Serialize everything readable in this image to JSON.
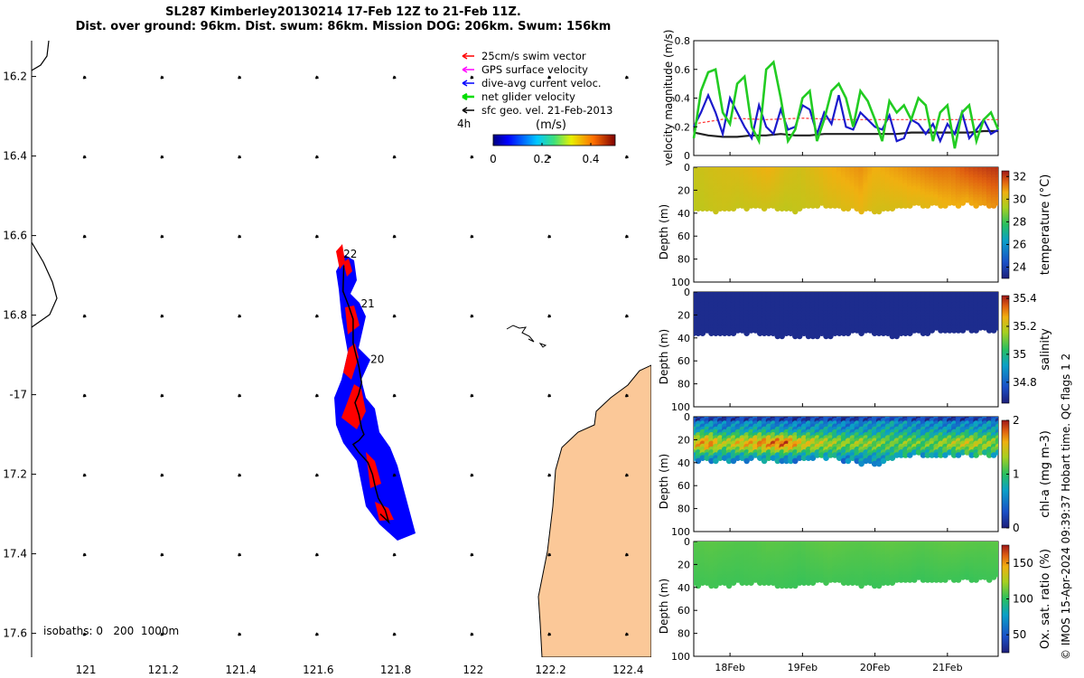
{
  "title": {
    "line1": "SL287 Kimberley20130214 17-Feb 12Z to 21-Feb 11Z.",
    "line2": "Dist. over ground: 96km. Dist. swum: 86km. Mission DOG: 206km. Swum: 156km"
  },
  "colors": {
    "swim_vector": "#ff0000",
    "gps_velocity": "#ff00ff",
    "dive_avg": "#0000ff",
    "net_glider": "#00dd00",
    "sfc_geo": "#000000",
    "land": "#fbc898",
    "track_red": "#ff0000",
    "track_blue": "#0000ff"
  },
  "copyright": "© IMOS 15-Apr-2024 09:39:37 Hobart time. QC flags 1  2",
  "chart_data": [
    {
      "type": "scatter",
      "id": "map",
      "xlim": [
        120.86,
        122.46
      ],
      "ylim": [
        -17.66,
        -16.11
      ],
      "xticks": [
        121,
        121.2,
        121.4,
        121.6,
        121.8,
        122,
        122.2,
        122.4
      ],
      "xtick_labels": [
        "121",
        "121.2",
        "121.4",
        "121.6",
        "121.8",
        "122",
        "122.2",
        "122.4"
      ],
      "yticks": [
        -16.2,
        -16.4,
        -16.6,
        -16.8,
        -17,
        -17.2,
        -17.4,
        -17.6
      ],
      "ytick_labels": [
        "16.2",
        "16.4",
        "16.6",
        "16.8",
        "-17",
        "17.2",
        "17.4",
        "17.6"
      ],
      "legend": {
        "placement": "top-right",
        "entries": [
          "25cm/s swim vector",
          "GPS surface velocity",
          "dive-avg current veloc.",
          "net glider velocity",
          "sfc geo. vel. 21-Feb-2013"
        ]
      },
      "time_step_label": "4h",
      "colorbar": {
        "label": "(m/s)",
        "range": [
          0,
          0.5
        ],
        "ticks": [
          0,
          0.2,
          0.4
        ],
        "tick_labels": [
          "0",
          "0.2",
          "0.4"
        ]
      },
      "isobath_label": "isobaths: 0   200  1000m",
      "day_labels": [
        {
          "text": "22",
          "lon": 121.665,
          "lat": -16.655
        },
        {
          "text": "21",
          "lon": 121.71,
          "lat": -16.78
        },
        {
          "text": "20",
          "lon": 121.735,
          "lat": -16.92
        }
      ],
      "track": [
        [
          121.666,
          -16.675
        ],
        [
          121.664,
          -16.74
        ],
        [
          121.678,
          -16.775
        ],
        [
          121.69,
          -16.81
        ],
        [
          121.69,
          -16.87
        ],
        [
          121.695,
          -16.89
        ],
        [
          121.705,
          -16.93
        ],
        [
          121.712,
          -16.97
        ],
        [
          121.704,
          -17.0
        ],
        [
          121.695,
          -17.02
        ],
        [
          121.705,
          -17.05
        ],
        [
          121.712,
          -17.085
        ],
        [
          121.718,
          -17.1
        ],
        [
          121.705,
          -17.115
        ],
        [
          121.69,
          -17.125
        ],
        [
          121.705,
          -17.145
        ],
        [
          121.728,
          -17.17
        ],
        [
          121.74,
          -17.2
        ],
        [
          121.748,
          -17.235
        ],
        [
          121.755,
          -17.26
        ],
        [
          121.773,
          -17.29
        ],
        [
          121.782,
          -17.32
        ],
        [
          121.76,
          -17.3
        ]
      ],
      "sfc_geo_grid": {
        "lons": [
          121.0,
          121.2,
          121.4,
          121.6,
          121.8,
          122.0,
          122.2,
          122.4
        ],
        "lats": [
          -16.2,
          -16.4,
          -16.6,
          -16.8,
          -17.0,
          -17.2,
          -17.4,
          -17.6
        ],
        "u": -0.1,
        "v": -0.08
      }
    },
    {
      "type": "line",
      "id": "velocity",
      "ylabel": "velocity magnitude (m/s)",
      "ylim": [
        0,
        0.8
      ],
      "yticks": [
        0,
        0.2,
        0.4,
        0.6,
        0.8
      ],
      "ytick_labels": [
        "0",
        "0.2",
        "0.4",
        "0.6",
        "0.8"
      ],
      "xlim": [
        17.5,
        21.7
      ],
      "series": [
        {
          "name": "swim speed",
          "color": "#ff3333",
          "x": [
            17.5,
            18.0,
            18.5,
            19.0,
            19.5,
            20.0,
            20.5,
            21.0,
            21.5,
            21.7
          ],
          "values": [
            0.22,
            0.26,
            0.25,
            0.26,
            0.25,
            0.25,
            0.25,
            0.25,
            0.25,
            0.25
          ]
        },
        {
          "name": "sfc geo. vel.",
          "color": "#222222",
          "x": [
            17.5,
            17.7,
            17.9,
            18.1,
            18.3,
            18.5,
            18.7,
            18.9,
            19.1,
            19.3,
            19.5,
            19.7,
            19.9,
            20.1,
            20.3,
            20.5,
            20.7,
            20.9,
            21.1,
            21.3,
            21.5,
            21.7
          ],
          "values": [
            0.16,
            0.14,
            0.13,
            0.13,
            0.14,
            0.14,
            0.15,
            0.14,
            0.14,
            0.15,
            0.15,
            0.15,
            0.15,
            0.15,
            0.15,
            0.16,
            0.16,
            0.16,
            0.16,
            0.16,
            0.17,
            0.17
          ]
        },
        {
          "name": "dive-avg current",
          "color": "#1a1acc",
          "x": [
            17.5,
            17.6,
            17.7,
            17.8,
            17.9,
            18.0,
            18.1,
            18.2,
            18.3,
            18.4,
            18.5,
            18.6,
            18.7,
            18.8,
            18.9,
            19.0,
            19.1,
            19.2,
            19.3,
            19.4,
            19.5,
            19.6,
            19.7,
            19.8,
            19.9,
            20.0,
            20.1,
            20.2,
            20.3,
            20.4,
            20.5,
            20.6,
            20.7,
            20.8,
            20.9,
            21.0,
            21.1,
            21.2,
            21.3,
            21.4,
            21.5,
            21.6,
            21.7
          ],
          "values": [
            0.2,
            0.3,
            0.42,
            0.3,
            0.15,
            0.4,
            0.3,
            0.2,
            0.12,
            0.35,
            0.2,
            0.15,
            0.32,
            0.18,
            0.2,
            0.35,
            0.32,
            0.15,
            0.3,
            0.22,
            0.42,
            0.2,
            0.18,
            0.3,
            0.25,
            0.2,
            0.18,
            0.28,
            0.1,
            0.12,
            0.25,
            0.22,
            0.15,
            0.22,
            0.1,
            0.22,
            0.15,
            0.3,
            0.12,
            0.18,
            0.25,
            0.15,
            0.18
          ]
        },
        {
          "name": "net glider velocity",
          "color": "#22cc22",
          "x": [
            17.5,
            17.6,
            17.7,
            17.8,
            17.9,
            18.0,
            18.1,
            18.2,
            18.3,
            18.4,
            18.5,
            18.6,
            18.7,
            18.8,
            18.9,
            19.0,
            19.1,
            19.2,
            19.3,
            19.4,
            19.5,
            19.6,
            19.7,
            19.8,
            19.9,
            20.0,
            20.1,
            20.2,
            20.3,
            20.4,
            20.5,
            20.6,
            20.7,
            20.8,
            20.9,
            21.0,
            21.1,
            21.2,
            21.3,
            21.4,
            21.5,
            21.6,
            21.7
          ],
          "values": [
            0.12,
            0.45,
            0.58,
            0.6,
            0.3,
            0.22,
            0.5,
            0.55,
            0.2,
            0.1,
            0.6,
            0.65,
            0.4,
            0.1,
            0.18,
            0.4,
            0.45,
            0.1,
            0.25,
            0.45,
            0.5,
            0.4,
            0.2,
            0.45,
            0.38,
            0.25,
            0.1,
            0.38,
            0.3,
            0.35,
            0.25,
            0.4,
            0.35,
            0.1,
            0.3,
            0.35,
            0.05,
            0.3,
            0.35,
            0.1,
            0.25,
            0.3,
            0.18
          ]
        }
      ]
    },
    {
      "type": "scatter",
      "id": "temperature",
      "ylabel": "Depth (m)",
      "clabel": "temperature (°C)",
      "ylim": [
        100,
        0
      ],
      "yticks": [
        0,
        20,
        40,
        60,
        80,
        100
      ],
      "ytick_labels": [
        "0",
        "20",
        "40",
        "60",
        "80",
        "100"
      ],
      "clim": [
        23,
        32.5
      ],
      "cticks": [
        24,
        26,
        28,
        30,
        32
      ],
      "ctick_labels": [
        "24",
        "26",
        "28",
        "30",
        "32"
      ],
      "xlim": [
        17.5,
        21.7
      ],
      "bottom_depth": [
        36,
        38,
        37,
        36,
        35,
        36,
        38,
        37,
        34,
        35,
        36,
        38,
        40,
        36,
        34,
        33,
        34,
        33,
        32,
        33,
        34
      ],
      "surface_value": [
        29.8,
        30.0,
        30.1,
        30.2,
        30.4,
        30.6,
        30.2,
        30.0,
        30.3,
        30.6,
        30.8,
        31.0,
        30.6,
        30.8,
        31.0,
        31.2,
        31.4,
        31.4,
        31.8,
        32.0,
        32.2
      ],
      "bottom_value": [
        29.6,
        29.8,
        29.9,
        29.8,
        29.9,
        29.9,
        29.7,
        29.8,
        29.9,
        30.1,
        30.2,
        30.4,
        30.0,
        30.1,
        30.2,
        30.3,
        30.4,
        30.6,
        30.6,
        30.8,
        31.0
      ]
    },
    {
      "type": "scatter",
      "id": "salinity",
      "ylabel": "Depth (m)",
      "clabel": "salinity",
      "ylim": [
        100,
        0
      ],
      "yticks": [
        0,
        20,
        40,
        60,
        80,
        100
      ],
      "ytick_labels": [
        "0",
        "20",
        "40",
        "60",
        "80",
        "100"
      ],
      "clim": [
        34.65,
        35.42
      ],
      "cticks": [
        34.8,
        35,
        35.2,
        35.4
      ],
      "ctick_labels": [
        "34.8",
        "35",
        "35.2",
        "35.4"
      ],
      "xlim": [
        17.5,
        21.7
      ],
      "bottom_depth": [
        36,
        37,
        37,
        35,
        36,
        38,
        38,
        39,
        40,
        38,
        36,
        35,
        36,
        40,
        36,
        36,
        34,
        35,
        33,
        34,
        33
      ],
      "surface_value": [
        34.68,
        34.68,
        34.68,
        34.68,
        34.68,
        34.68,
        34.68,
        34.68,
        34.68,
        34.68,
        34.68,
        34.68,
        34.68,
        34.68,
        34.68,
        34.68,
        34.68,
        34.68,
        34.68,
        34.68,
        34.68
      ],
      "bottom_value": [
        34.68,
        34.68,
        34.68,
        34.68,
        34.68,
        34.68,
        34.68,
        34.68,
        34.68,
        34.68,
        34.68,
        34.68,
        34.68,
        34.68,
        34.68,
        34.68,
        34.68,
        34.68,
        34.68,
        34.68,
        34.68
      ]
    },
    {
      "type": "scatter",
      "id": "chla",
      "ylabel": "Depth (m)",
      "clabel": "chl-a (mg m-3)",
      "ylim": [
        100,
        0
      ],
      "yticks": [
        0,
        20,
        40,
        60,
        80,
        100
      ],
      "ytick_labels": [
        "0",
        "20",
        "40",
        "60",
        "80",
        "100"
      ],
      "clim": [
        0,
        2
      ],
      "cticks": [
        0,
        1,
        2
      ],
      "ctick_labels": [
        "0",
        "1",
        "2"
      ],
      "xlim": [
        17.5,
        21.7
      ],
      "bottom_depth": [
        38,
        39,
        39,
        38,
        37,
        38,
        40,
        38,
        36,
        35,
        38,
        40,
        43,
        36,
        34,
        33,
        35,
        34,
        33,
        34,
        33
      ],
      "surface_value": [
        0.55,
        0.6,
        0.5,
        0.55,
        0.6,
        0.55,
        0.5,
        0.5,
        0.55,
        0.6,
        0.5,
        0.55,
        0.6,
        0.7,
        0.6,
        0.55,
        0.6,
        0.5,
        0.55,
        0.6,
        0.6
      ],
      "bottom_value": [
        1.5,
        1.7,
        1.3,
        1.5,
        1.6,
        1.7,
        1.8,
        1.5,
        1.4,
        1.3,
        1.2,
        1.3,
        1.2,
        1.1,
        1.2,
        1.1,
        1.2,
        1.3,
        1.4,
        1.3,
        1.2
      ]
    },
    {
      "type": "scatter",
      "id": "oxsat",
      "ylabel": "Depth (m)",
      "clabel": "Ox. sat. ratio (%)",
      "ylim": [
        100,
        0
      ],
      "yticks": [
        0,
        20,
        40,
        60,
        80,
        100
      ],
      "ytick_labels": [
        "0",
        "20",
        "40",
        "60",
        "80",
        "100"
      ],
      "clim": [
        25,
        175
      ],
      "cticks": [
        50,
        100,
        150
      ],
      "ctick_labels": [
        "50",
        "100",
        "150"
      ],
      "xlim": [
        17.5,
        21.7
      ],
      "bottom_depth": [
        38,
        38,
        38,
        37,
        36,
        38,
        40,
        38,
        36,
        35,
        37,
        38,
        40,
        36,
        34,
        34,
        35,
        34,
        33,
        34,
        32
      ],
      "surface_value": [
        108,
        110,
        109,
        108,
        108,
        110,
        109,
        108,
        110,
        111,
        110,
        109,
        110,
        111,
        110,
        109,
        110,
        111,
        110,
        109,
        110
      ],
      "bottom_value": [
        104,
        105,
        104,
        104,
        105,
        104,
        104,
        103,
        104,
        105,
        104,
        104,
        103,
        104,
        104,
        103,
        104,
        104,
        103,
        104,
        104
      ]
    },
    {
      "type": "table",
      "id": "shared_time_axis",
      "xticks": [
        18,
        19,
        20,
        21
      ],
      "xtick_labels": [
        "18Feb",
        "19Feb",
        "20Feb",
        "21Feb"
      ]
    }
  ]
}
